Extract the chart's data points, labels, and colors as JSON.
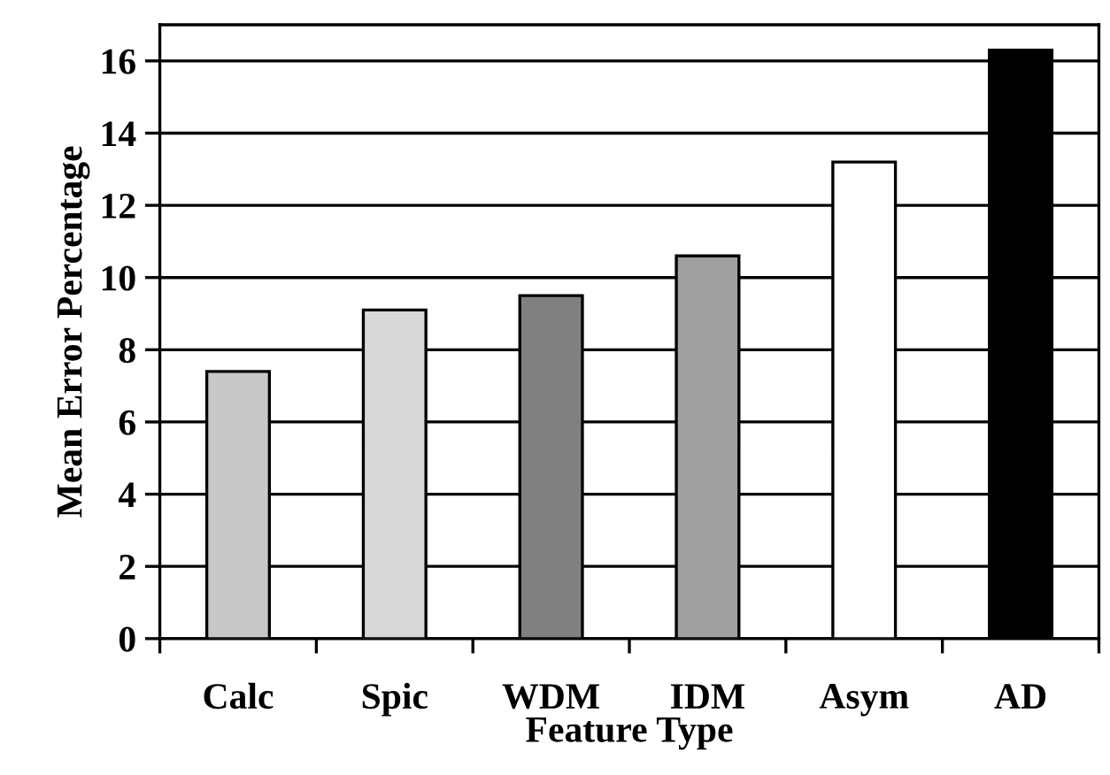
{
  "chart_data": {
    "type": "bar",
    "xlabel": "Feature Type",
    "ylabel": "Mean Error Percentage",
    "categories": [
      "Calc",
      "Spic",
      "WDM",
      "IDM",
      "Asym",
      "AD"
    ],
    "values": [
      7.4,
      9.1,
      9.5,
      10.6,
      13.2,
      16.3
    ],
    "colors": [
      "#c8c8c8",
      "#d8d8d8",
      "#808080",
      "#a0a0a0",
      "#ffffff",
      "#000000"
    ],
    "ylim": [
      0,
      17
    ],
    "yticks": [
      0,
      2,
      4,
      6,
      8,
      10,
      12,
      14,
      16
    ],
    "grid": "y",
    "legend": false
  }
}
